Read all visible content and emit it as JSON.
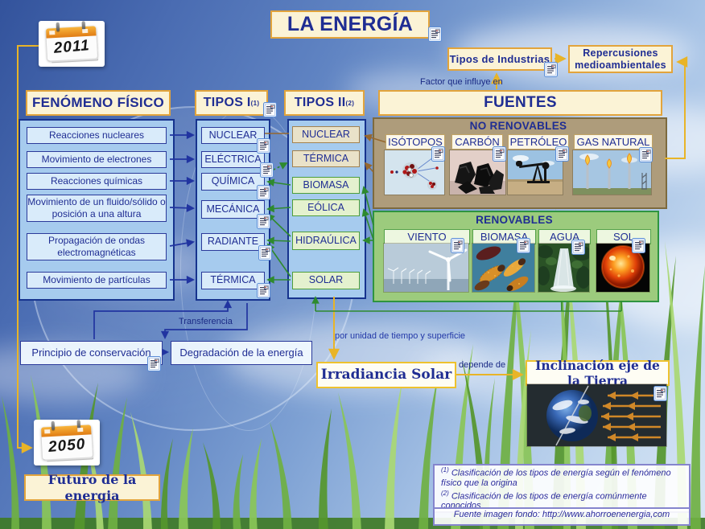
{
  "title": "LA ENERGÍA",
  "calendars": {
    "start_year": "2011",
    "end_year": "2050"
  },
  "industry": {
    "tipos_industrias": "Tipos de Industrias",
    "repercusiones": "Repercusiones medioambientales",
    "factor_influye": "Factor que influye en"
  },
  "fenomeno": {
    "header": "FENÓMENO FÍSICO",
    "items": [
      "Reacciones nucleares",
      "Movimiento de electrones",
      "Reacciones químicas",
      "Movimiento de un fluido/sólido o posición a una altura",
      "Propagación de ondas electromagnéticas",
      "Movimiento de partículas"
    ]
  },
  "tipos1": {
    "header": "TIPOS I",
    "superscript": "(1)",
    "items": [
      "NUCLEAR",
      "ELÉCTRICA",
      "QUÍMICA",
      "MECÁNICA",
      "RADIANTE",
      "TÉRMICA"
    ]
  },
  "tipos2": {
    "header": "TIPOS II",
    "superscript": "(2)",
    "items": [
      "NUCLEAR",
      "TÉRMICA",
      "BIOMASA",
      "EÓLICA",
      "HIDRAÚLICA",
      "SOLAR"
    ]
  },
  "fuentes": {
    "header": "FUENTES",
    "no_renovables": {
      "title": "NO RENOVABLES",
      "items": [
        "ISÓTOPOS",
        "CARBÓN",
        "PETRÓLEO",
        "GAS NATURAL"
      ]
    },
    "renovables": {
      "title": "RENOVABLES",
      "items": [
        "VIENTO",
        "BIOMASA",
        "AGUA",
        "SOL"
      ]
    }
  },
  "conservacion": {
    "principio": "Principio de conservación",
    "degradacion": "Degradación de la energía",
    "transferencia": "Transferencia"
  },
  "solar": {
    "por_unidad": "por unidad de tiempo y superficie",
    "irradiancia": "Irradiancia Solar",
    "depende": "depende de",
    "inclinacion": "Inclinación eje de la Tierra"
  },
  "futuro": "Futuro de la energia",
  "footnotes": {
    "n1_sup": "(1)",
    "n1": "Clasificación de los tipos de energía según el fenómeno físico que la origina",
    "n2_sup": "(2)",
    "n2": "Clasificación de los tipos de energía comúnmente conocidos",
    "fuente": "Fuente imagen fondo: http://www.ahorroenenergia,com"
  },
  "colors": {
    "accent_gold": "#E2A43C",
    "navy_text": "#1F2D93",
    "container_blue": "#A6CBEE",
    "non_renewable_tan": "#AE9C7B",
    "renewable_green": "#9CCB7D",
    "connector_yellow": "#E8B428",
    "connector_green": "#2E8A2E",
    "connector_brown": "#96682F",
    "connector_blue": "#2134A0"
  }
}
